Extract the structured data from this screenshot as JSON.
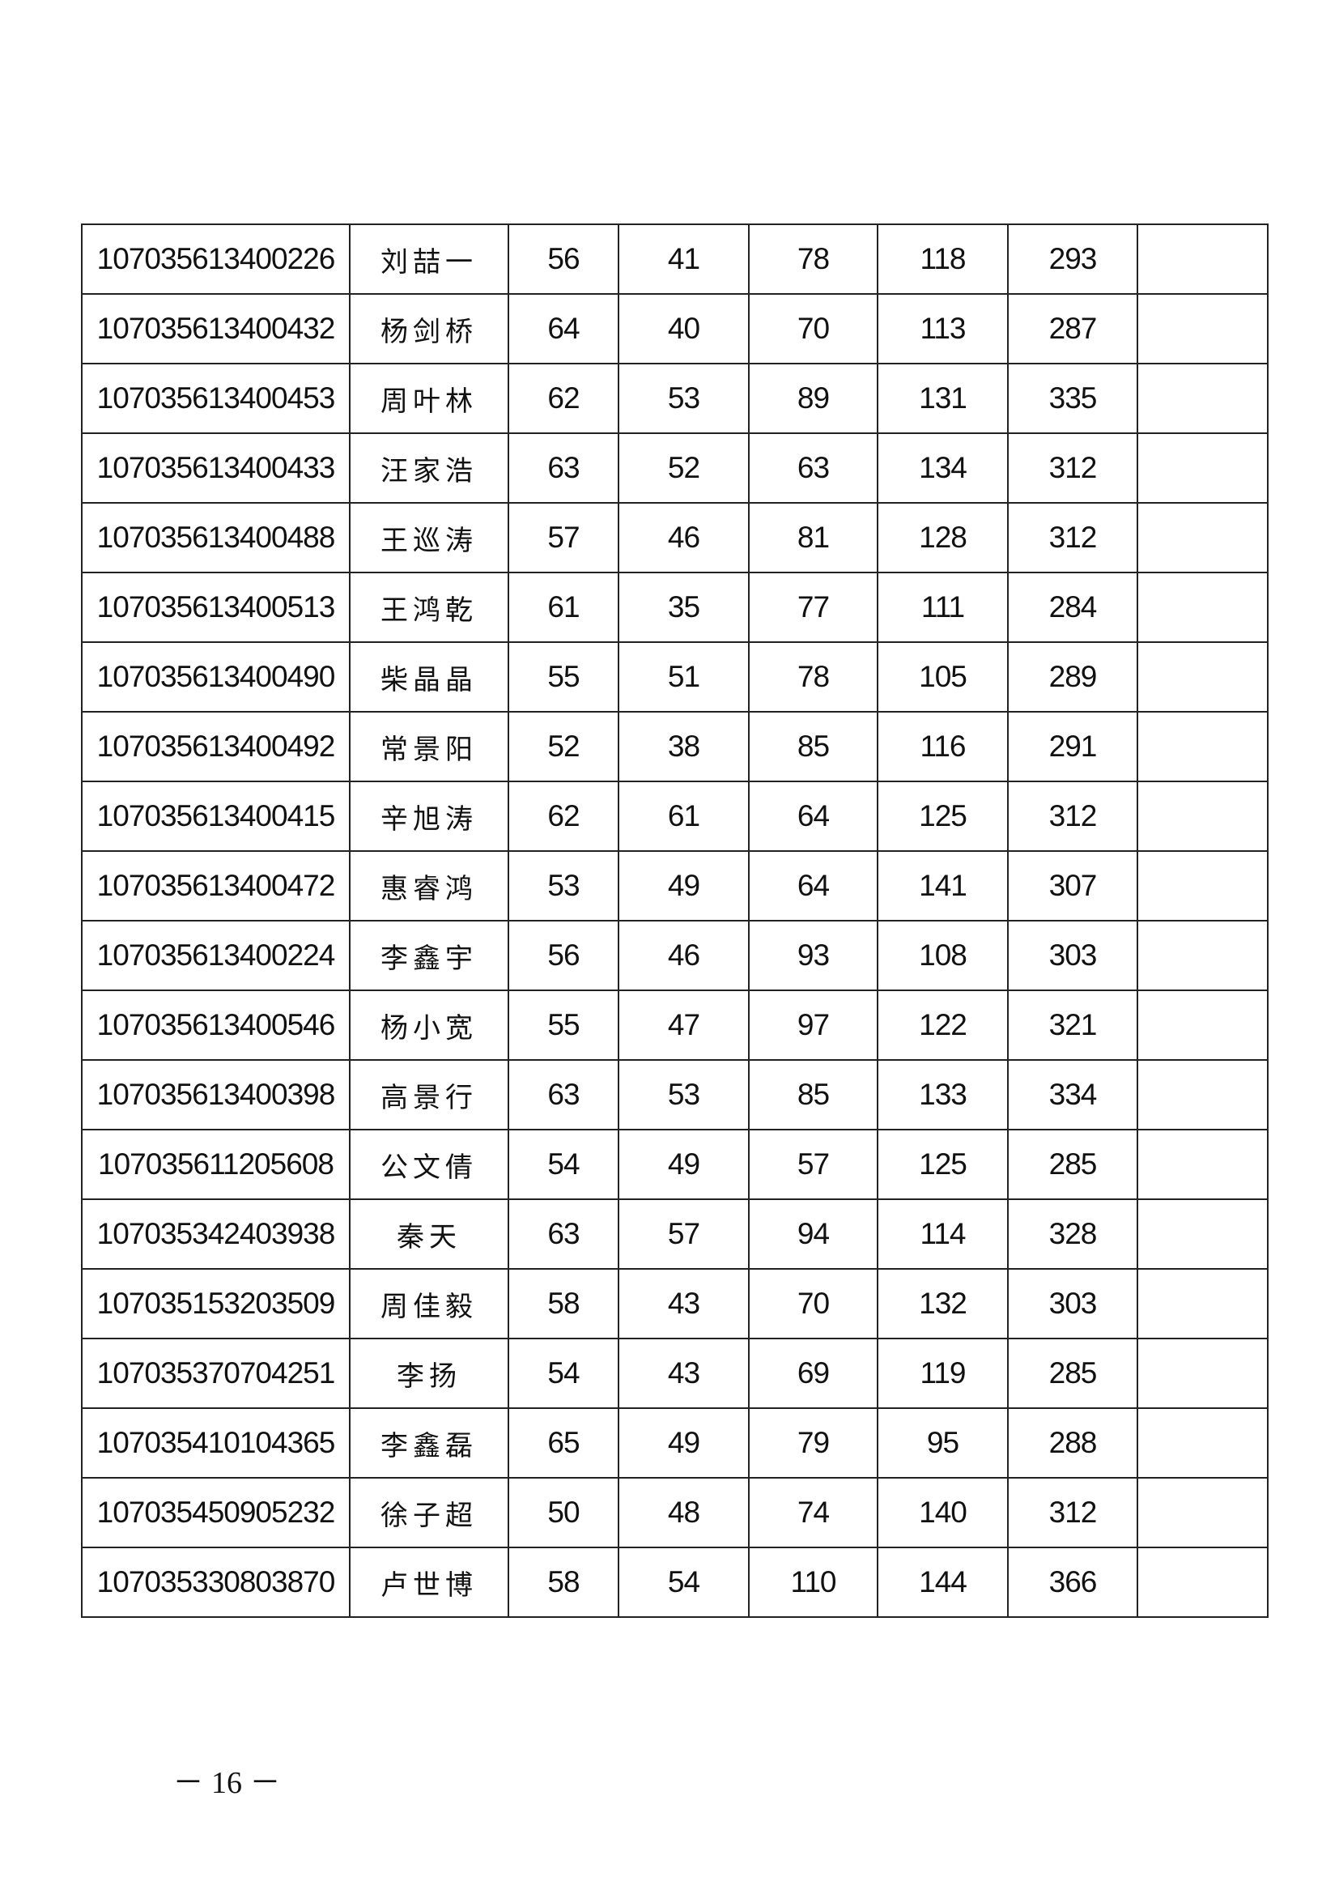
{
  "rows": [
    [
      "107035613400226",
      "刘喆一",
      "56",
      "41",
      "78",
      "118",
      "293",
      ""
    ],
    [
      "107035613400432",
      "杨剑桥",
      "64",
      "40",
      "70",
      "113",
      "287",
      ""
    ],
    [
      "107035613400453",
      "周叶林",
      "62",
      "53",
      "89",
      "131",
      "335",
      ""
    ],
    [
      "107035613400433",
      "汪家浩",
      "63",
      "52",
      "63",
      "134",
      "312",
      ""
    ],
    [
      "107035613400488",
      "王巡涛",
      "57",
      "46",
      "81",
      "128",
      "312",
      ""
    ],
    [
      "107035613400513",
      "王鸿乾",
      "61",
      "35",
      "77",
      "111",
      "284",
      ""
    ],
    [
      "107035613400490",
      "柴晶晶",
      "55",
      "51",
      "78",
      "105",
      "289",
      ""
    ],
    [
      "107035613400492",
      "常景阳",
      "52",
      "38",
      "85",
      "116",
      "291",
      ""
    ],
    [
      "107035613400415",
      "辛旭涛",
      "62",
      "61",
      "64",
      "125",
      "312",
      ""
    ],
    [
      "107035613400472",
      "惠睿鸿",
      "53",
      "49",
      "64",
      "141",
      "307",
      ""
    ],
    [
      "107035613400224",
      "李鑫宇",
      "56",
      "46",
      "93",
      "108",
      "303",
      ""
    ],
    [
      "107035613400546",
      "杨小宽",
      "55",
      "47",
      "97",
      "122",
      "321",
      ""
    ],
    [
      "107035613400398",
      "高景行",
      "63",
      "53",
      "85",
      "133",
      "334",
      ""
    ],
    [
      "107035611205608",
      "公文倩",
      "54",
      "49",
      "57",
      "125",
      "285",
      ""
    ],
    [
      "107035342403938",
      "秦天",
      "63",
      "57",
      "94",
      "114",
      "328",
      ""
    ],
    [
      "107035153203509",
      "周佳毅",
      "58",
      "43",
      "70",
      "132",
      "303",
      ""
    ],
    [
      "107035370704251",
      "李扬",
      "54",
      "43",
      "69",
      "119",
      "285",
      ""
    ],
    [
      "107035410104365",
      "李鑫磊",
      "65",
      "49",
      "79",
      "95",
      "288",
      ""
    ],
    [
      "107035450905232",
      "徐子超",
      "50",
      "48",
      "74",
      "140",
      "312",
      ""
    ],
    [
      "107035330803870",
      "卢世博",
      "58",
      "54",
      "110",
      "144",
      "366",
      ""
    ]
  ],
  "page_number": "－ 16 －"
}
